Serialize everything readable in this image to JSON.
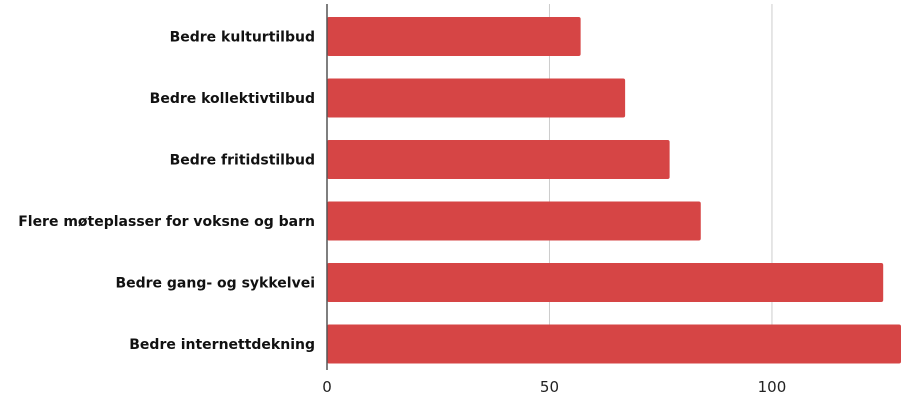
{
  "chart_data": {
    "type": "bar",
    "orientation": "horizontal",
    "categories": [
      "Bedre kulturtilbud",
      "Bedre kollektivtilbud",
      "Bedre fritidstilbud",
      "Flere møteplasser for voksne og barn",
      "Bedre gang- og sykkelvei",
      "Bedre internettdekning"
    ],
    "values": [
      57,
      67,
      77,
      84,
      125,
      129
    ],
    "xlim": [
      0,
      129
    ],
    "xticks": [
      0,
      50,
      100
    ],
    "grid": true,
    "legend": "none",
    "bar_color": "#d64545",
    "grid_color": "#cccccc",
    "axis_color": "#555555"
  }
}
